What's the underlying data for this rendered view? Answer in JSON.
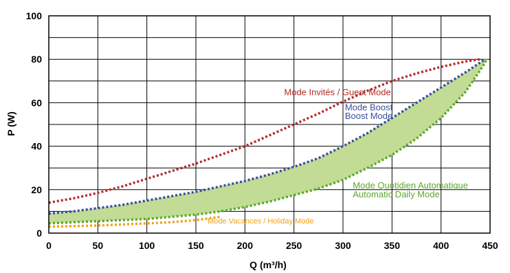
{
  "chart_data": {
    "type": "line",
    "xlabel": "Q (m³/h)",
    "ylabel": "P (W)",
    "xlim": [
      0,
      450
    ],
    "ylim": [
      0,
      100
    ],
    "x_ticks": [
      "0",
      "50",
      "100",
      "150",
      "200",
      "250",
      "300",
      "350",
      "400",
      "450"
    ],
    "y_ticks": [
      "0",
      "20",
      "40",
      "60",
      "80",
      "100"
    ],
    "grid": true,
    "series": [
      {
        "name": "Mode Invités / Guest Mode",
        "color": "#b22d26",
        "style": "dotted",
        "points": [
          [
            0,
            14
          ],
          [
            25,
            16
          ],
          [
            50,
            18.5
          ],
          [
            75,
            21.5
          ],
          [
            100,
            25
          ],
          [
            125,
            28.5
          ],
          [
            150,
            32
          ],
          [
            175,
            36
          ],
          [
            200,
            40
          ],
          [
            225,
            45
          ],
          [
            250,
            50
          ],
          [
            275,
            55
          ],
          [
            300,
            60.5
          ],
          [
            325,
            65.5
          ],
          [
            350,
            70
          ],
          [
            375,
            73.5
          ],
          [
            400,
            76.5
          ],
          [
            425,
            79
          ],
          [
            440,
            80
          ]
        ]
      },
      {
        "name": "Mode Boost / Boost Mode",
        "color": "#3a4ea0",
        "style": "dotted",
        "points": [
          [
            0,
            9
          ],
          [
            25,
            10
          ],
          [
            50,
            11.5
          ],
          [
            75,
            13
          ],
          [
            100,
            15
          ],
          [
            125,
            17
          ],
          [
            150,
            19
          ],
          [
            175,
            21.5
          ],
          [
            200,
            24
          ],
          [
            225,
            27
          ],
          [
            250,
            30.5
          ],
          [
            275,
            34.5
          ],
          [
            300,
            40
          ],
          [
            325,
            46
          ],
          [
            350,
            53
          ],
          [
            375,
            60
          ],
          [
            400,
            67
          ],
          [
            425,
            74
          ],
          [
            445,
            80
          ]
        ]
      },
      {
        "name": "Mode Quotidien Automatique / Automatic Daily Mode",
        "color": "#5aa82d",
        "style": "dotted",
        "points": [
          [
            0,
            4.5
          ],
          [
            25,
            5
          ],
          [
            50,
            5.5
          ],
          [
            75,
            6
          ],
          [
            100,
            6.5
          ],
          [
            125,
            7.5
          ],
          [
            150,
            8.5
          ],
          [
            175,
            10
          ],
          [
            200,
            12
          ],
          [
            225,
            14.5
          ],
          [
            250,
            17.5
          ],
          [
            275,
            20.5
          ],
          [
            300,
            24.5
          ],
          [
            325,
            30
          ],
          [
            350,
            36
          ],
          [
            375,
            43.5
          ],
          [
            400,
            53
          ],
          [
            425,
            65
          ],
          [
            440,
            75
          ],
          [
            447,
            80
          ]
        ]
      },
      {
        "name": "Mode Vacances / Holiday Mode",
        "color": "#f0a21c",
        "style": "dotted",
        "points": [
          [
            0,
            3
          ],
          [
            25,
            3.2
          ],
          [
            50,
            3.5
          ],
          [
            75,
            4
          ],
          [
            100,
            4.5
          ],
          [
            125,
            5
          ],
          [
            150,
            6
          ],
          [
            175,
            7.5
          ]
        ]
      }
    ],
    "band": {
      "between": [
        "Mode Boost / Boost Mode",
        "Mode Quotidien Automatique / Automatic Daily Mode"
      ],
      "fill": "#c2dc95"
    },
    "annotations": [
      {
        "text": "Mode Invités / Guest Mode",
        "color": "#b22d26",
        "x": 240,
        "y": 63.5
      },
      {
        "text": "Mode Boost",
        "color": "#3a4ea0",
        "x": 302,
        "y": 56.5
      },
      {
        "text": "Boost Mode",
        "color": "#3a4ea0",
        "x": 302,
        "y": 52.5
      },
      {
        "text": "Mode Quotidien Automatique",
        "color": "#5aa82d",
        "x": 310,
        "y": 20.5
      },
      {
        "text": "Automatic Daily Mode",
        "color": "#5aa82d",
        "x": 310,
        "y": 16.5
      },
      {
        "text": "Mode Vacances / Holiday Mode",
        "color": "#f0a21c",
        "x": 162,
        "y": 4.5
      }
    ]
  }
}
